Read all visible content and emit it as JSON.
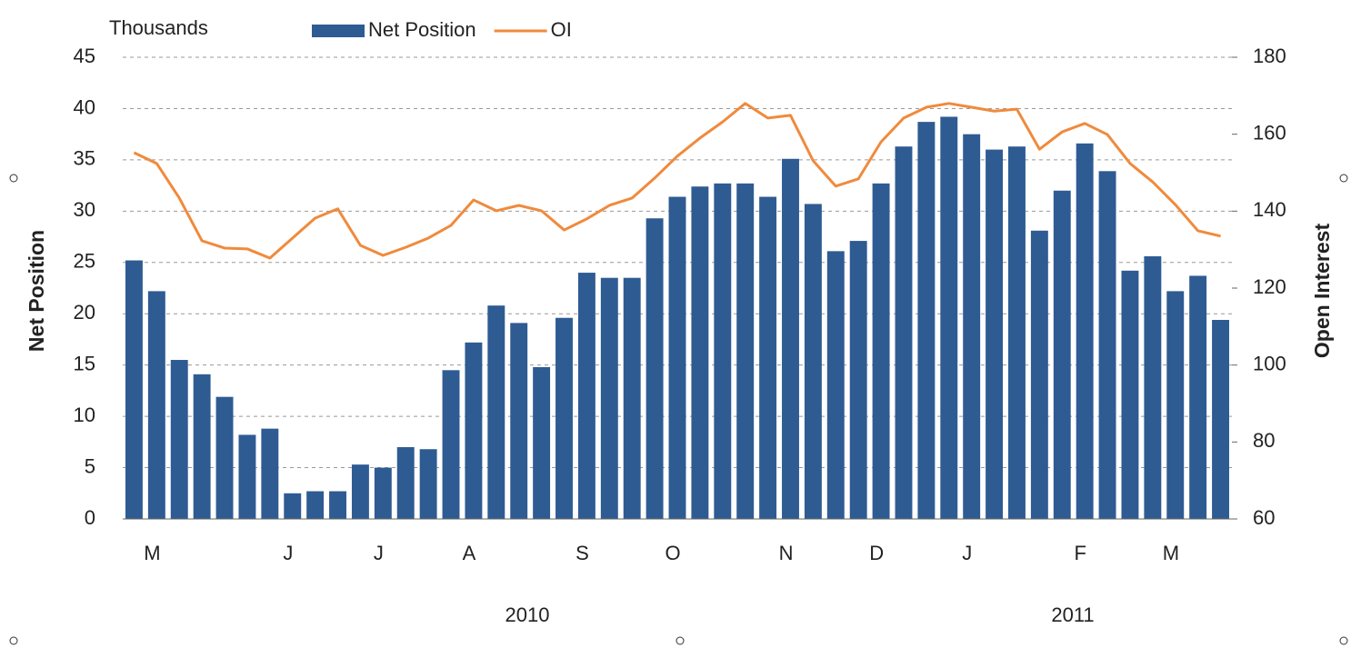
{
  "chart_data": {
    "type": "bar_line",
    "unit_label": "Thousands",
    "ylabel": "Net Position",
    "y2label": "Open Interest",
    "categories": [
      "M",
      null,
      null,
      null,
      null,
      null,
      "J",
      null,
      null,
      null,
      "J",
      null,
      null,
      null,
      "A",
      null,
      null,
      null,
      null,
      "S",
      null,
      null,
      null,
      "O",
      null,
      null,
      null,
      null,
      "N",
      null,
      null,
      null,
      "D",
      null,
      null,
      null,
      "J",
      null,
      null,
      null,
      null,
      "F",
      null,
      null,
      null,
      "M",
      null,
      null,
      null
    ],
    "year_labels": [
      "2010",
      "2011"
    ],
    "series": [
      {
        "name": "Net Position",
        "type": "bar",
        "color": "#2f5b93",
        "values": [
          25.2,
          22.2,
          15.5,
          14.1,
          11.9,
          8.2,
          8.8,
          2.5,
          2.7,
          2.7,
          5.3,
          5.0,
          7.0,
          6.8,
          14.5,
          17.2,
          20.8,
          19.1,
          14.8,
          19.6,
          24.0,
          23.5,
          23.5,
          29.3,
          31.4,
          32.4,
          32.7,
          32.7,
          31.4,
          35.1,
          30.7,
          26.1,
          27.1,
          32.7,
          36.3,
          38.7,
          39.2,
          37.5,
          36.0,
          36.3,
          28.1,
          32.0,
          36.6,
          33.9,
          24.2,
          25.6,
          22.2,
          23.7,
          19.4
        ]
      },
      {
        "name": "OI",
        "type": "line",
        "axis": "y2",
        "color": "#f08a3c",
        "values": [
          155.2,
          152.4,
          143.4,
          132.3,
          130.4,
          130.2,
          127.8,
          133,
          138.2,
          140.6,
          131.1,
          128.5,
          130.6,
          133,
          136.3,
          142.9,
          140.1,
          141.5,
          140.1,
          135.1,
          138,
          141.5,
          143.4,
          148.6,
          154.3,
          159,
          163.2,
          168,
          164.2,
          164.9,
          153.1,
          146.5,
          148.4,
          158,
          164.2,
          167,
          168,
          167,
          166,
          166.5,
          156.1,
          160.6,
          162.8,
          159.9,
          152.4,
          147.6,
          141.7,
          134.9,
          133.5
        ]
      }
    ],
    "ylim": [
      0,
      45
    ],
    "yticks": [
      0,
      5,
      10,
      15,
      20,
      25,
      30,
      35,
      40,
      45
    ],
    "y2lim": [
      60,
      180
    ],
    "y2ticks": [
      60,
      80,
      100,
      120,
      140,
      160,
      180
    ],
    "grid": true,
    "legend": "top"
  }
}
